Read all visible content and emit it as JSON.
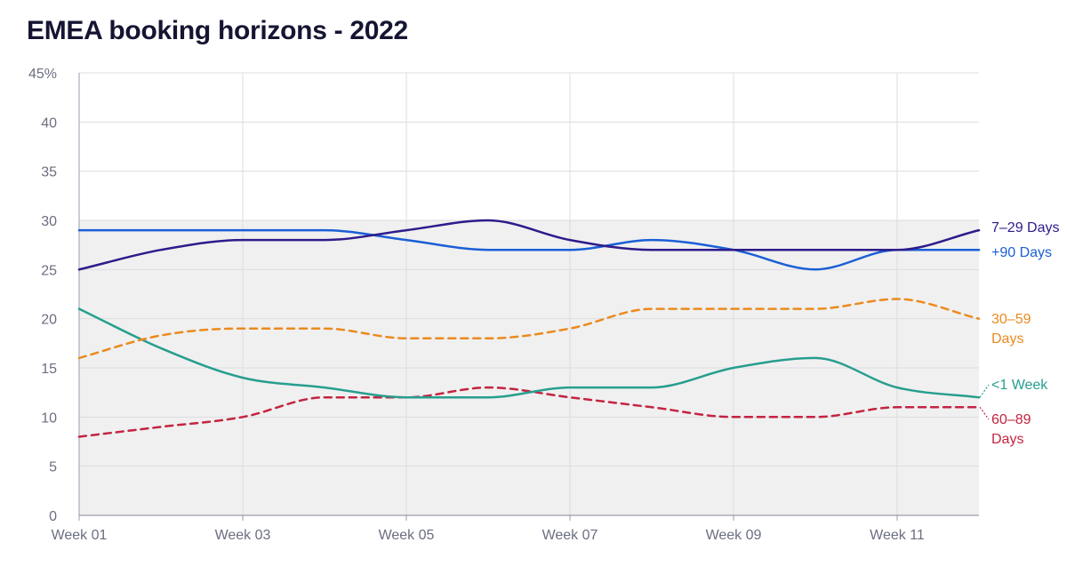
{
  "title": "EMEA booking horizons - 2022",
  "colors": {
    "background": "#ffffff",
    "plot_shading": "#f0f0f0",
    "grid": "#dcdde2",
    "axis": "#9a9cab",
    "tick_text": "#6b6e80",
    "title_text": "#151533"
  },
  "chart_data": {
    "type": "line",
    "title": "EMEA booking horizons - 2022",
    "xlabel": "",
    "ylabel": "",
    "x": [
      "Week 01",
      "Week 02",
      "Week 03",
      "Week 04",
      "Week 05",
      "Week 06",
      "Week 07",
      "Week 08",
      "Week 09",
      "Week 10",
      "Week 11",
      "Week 12"
    ],
    "x_tick_labels": [
      "Week 01",
      "Week 03",
      "Week 05",
      "Week 07",
      "Week 09",
      "Week 11"
    ],
    "ylim": [
      0,
      45
    ],
    "y_ticks": [
      0,
      5,
      10,
      15,
      20,
      25,
      30,
      35,
      40,
      45
    ],
    "y_tick_labels": [
      "0",
      "5",
      "10",
      "15",
      "20",
      "25",
      "30",
      "35",
      "40",
      "45%"
    ],
    "grid": true,
    "legend": "inline labels at right end of each series",
    "series": [
      {
        "name": "7–29 Days",
        "label_lines": [
          "7–29 Days"
        ],
        "color": "#2e1b8c",
        "dash": "solid",
        "values": [
          25,
          27,
          28,
          28,
          29,
          30,
          28,
          27,
          27,
          27,
          27,
          29
        ]
      },
      {
        "name": "+90 Days",
        "label_lines": [
          "+90 Days"
        ],
        "color": "#1a5fd6",
        "dash": "solid",
        "values": [
          29,
          29,
          29,
          29,
          28,
          27,
          27,
          28,
          27,
          25,
          27,
          27
        ]
      },
      {
        "name": "30–59 Days",
        "label_lines": [
          "30–59",
          "Days"
        ],
        "color": "#eb8a1e",
        "dash": "dashed",
        "values": [
          16,
          18.3,
          19,
          19,
          18,
          18,
          19,
          21,
          21,
          21,
          22,
          20
        ]
      },
      {
        "name": "<1 Week",
        "label_lines": [
          "<1 Week"
        ],
        "color": "#279e8e",
        "dash": "solid",
        "values": [
          21,
          17,
          14,
          13,
          12,
          12,
          13,
          13,
          15,
          16,
          13,
          12
        ]
      },
      {
        "name": "60–89 Days",
        "label_lines": [
          "60–89",
          "Days"
        ],
        "color": "#c42440",
        "dash": "dashed",
        "values": [
          8,
          9,
          10,
          12,
          12,
          13,
          12,
          11,
          10,
          10,
          11,
          11
        ]
      }
    ]
  }
}
